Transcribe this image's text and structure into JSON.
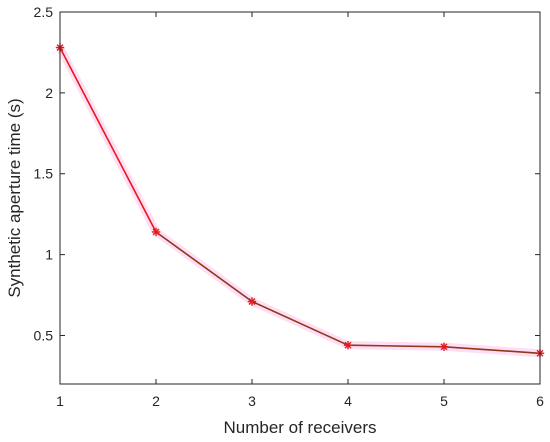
{
  "chart_data": {
    "type": "line",
    "title": "",
    "xlabel": "Number of receivers",
    "ylabel": "Synthetic aperture time (s)",
    "xlim": [
      1,
      6
    ],
    "ylim": [
      0.2,
      2.5
    ],
    "xticks": [
      "1",
      "2",
      "3",
      "4",
      "5",
      "6"
    ],
    "yticks": [
      "0.5",
      "1",
      "1.5",
      "2",
      "2.5"
    ],
    "grid": false,
    "legend": "none",
    "x": [
      1,
      2,
      3,
      4,
      5,
      6
    ],
    "series": [
      {
        "values": [
          2.28,
          1.14,
          0.71,
          0.44,
          0.43,
          0.39
        ],
        "marker": "asterisk",
        "colors": {
          "segment_1": "#e41a1c",
          "segments_rest": "#8b3a1a",
          "marker": "#e41a1c"
        }
      }
    ]
  }
}
